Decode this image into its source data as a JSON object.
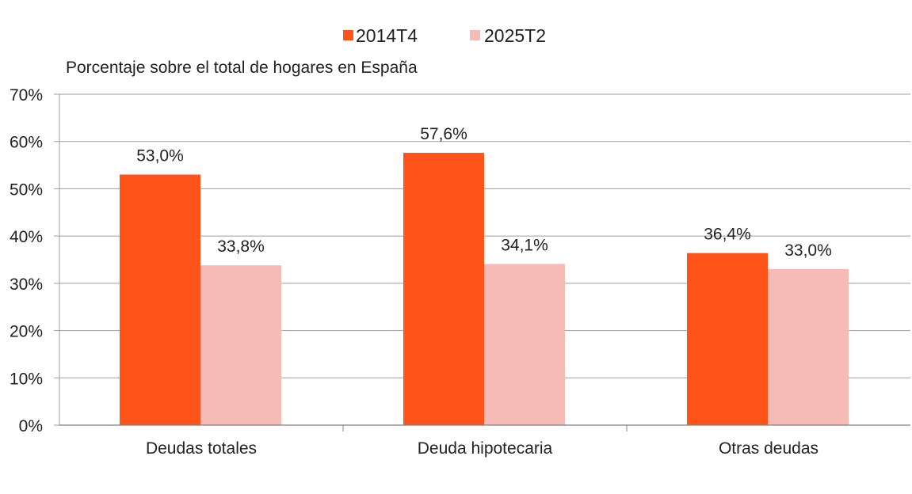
{
  "chart_data": {
    "type": "bar",
    "subtitle": "Porcentaje sobre el total de hogares en España",
    "categories": [
      "Deudas totales",
      "Deuda hipotecaria",
      "Otras deudas"
    ],
    "series": [
      {
        "name": "2014T4",
        "color": "#ff5319",
        "values": [
          53.0,
          57.6,
          36.4
        ],
        "labels": [
          "53,0%",
          "57,6%",
          "36,4%"
        ]
      },
      {
        "name": "2025T2",
        "color": "#f6bbb6",
        "values": [
          33.8,
          34.1,
          33.0
        ],
        "labels": [
          "33,8%",
          "34,1%",
          "33,0%"
        ]
      }
    ],
    "ylim": [
      0,
      70
    ],
    "yticks": [
      0,
      10,
      20,
      30,
      40,
      50,
      60,
      70
    ],
    "ytick_labels": [
      "0%",
      "10%",
      "20%",
      "30%",
      "40%",
      "50%",
      "60%",
      "70%"
    ],
    "grid": true,
    "legend_position": "top-center",
    "grid_color": "#9e9e9e"
  }
}
